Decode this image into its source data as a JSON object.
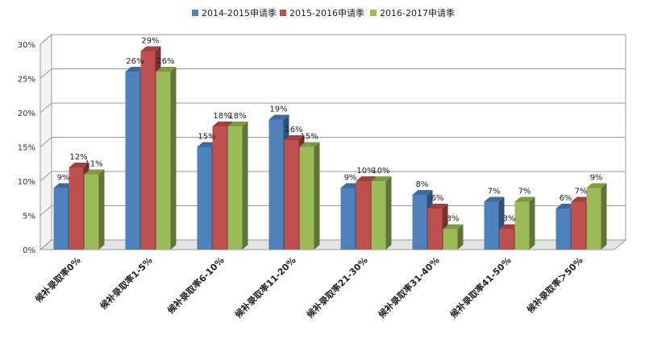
{
  "chart_data": {
    "type": "bar",
    "categories": [
      "候补录取率0%",
      "候补录取率1-5%",
      "候补录取率6-10%",
      "候补录取率11-20%",
      "候补录取率21-30%",
      "候补录取率31-40%",
      "候补录取率41-50%",
      "候补录取率＞50%"
    ],
    "series": [
      {
        "name": "2014-2015申请季",
        "color": "#4F81BD",
        "values": [
          9,
          26,
          15,
          19,
          9,
          8,
          7,
          6
        ],
        "labels": [
          "9%",
          "26%",
          "15%",
          "19%",
          "9%",
          "8%",
          "7%",
          "6%"
        ]
      },
      {
        "name": "2015-2016申请季",
        "color": "#C0504D",
        "values": [
          12,
          29,
          18,
          16,
          10,
          6,
          3,
          7
        ],
        "labels": [
          "12%",
          "29%",
          "18%",
          "16%",
          "10%",
          "6%",
          "3%",
          "7%"
        ]
      },
      {
        "name": "2016-2017申请季",
        "color": "#9BBB59",
        "values": [
          11,
          26,
          18,
          15,
          10,
          3,
          7,
          9
        ],
        "labels": [
          "11%",
          "26%",
          "18%",
          "15%",
          "10%",
          "3%",
          "7%",
          "9%"
        ]
      }
    ],
    "ylim": [
      0,
      30
    ],
    "yticks": [
      "0%",
      "5%",
      "10%",
      "15%",
      "20%",
      "25%",
      "30%"
    ],
    "grid": true,
    "legend_position": "top",
    "chart_style": "3d-column"
  }
}
